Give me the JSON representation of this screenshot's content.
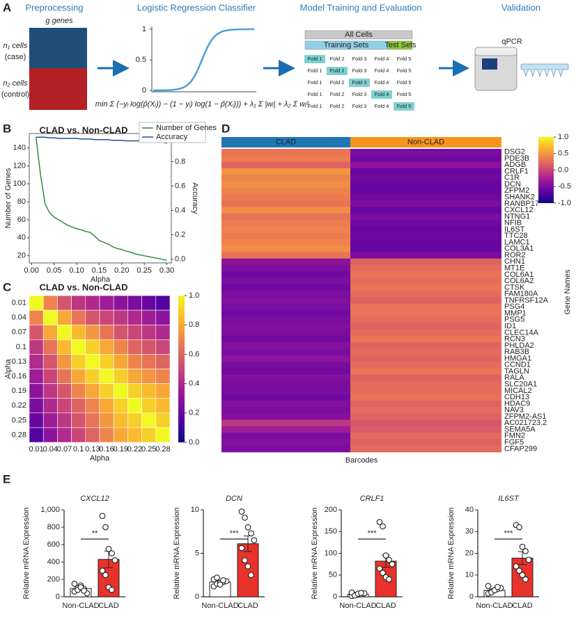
{
  "panels": [
    "A",
    "B",
    "C",
    "D",
    "E"
  ],
  "diagram": {
    "steps": [
      "Preprocessing",
      "Logistic Regression Classifier",
      "Model Training and Evaluation",
      "Validation"
    ],
    "columns": "g genes",
    "case": [
      "n₁ cells",
      "(case)"
    ],
    "control": [
      "n₂ cells",
      "(control)"
    ],
    "sigmoid_ticks": [
      1,
      0.5,
      0
    ],
    "formula": "min Σ (−yᵢ log(p̂(Xᵢ)) − (1 − yᵢ) log(1 − p̂(Xᵢ))) + λ₁ Σ |wᵢ| + λ₂ Σ wᵢ²",
    "all_cells": "All Cells",
    "training": "Training Sets",
    "test": "Test Sets",
    "folds": [
      "Fold 1",
      "Fold 2",
      "Fold 3",
      "Fold 4",
      "Fold 5"
    ],
    "device": "qPCR"
  },
  "chart_data": [
    {
      "type": "line",
      "title": "CLAD vs. Non-CLAD",
      "xlabel": "Alpha",
      "ylabel": "Number of Genes",
      "y2label": "Accuracy",
      "x": [
        0.01,
        0.02,
        0.03,
        0.04,
        0.05,
        0.06,
        0.07,
        0.08,
        0.09,
        0.1,
        0.11,
        0.12,
        0.13,
        0.14,
        0.15,
        0.16,
        0.17,
        0.18,
        0.19,
        0.2,
        0.21,
        0.22,
        0.23,
        0.24,
        0.25,
        0.26,
        0.27,
        0.28,
        0.29,
        0.3
      ],
      "series": [
        {
          "name": "Number of Genes",
          "color": "#2e8b3e",
          "values": [
            152,
            110,
            78,
            68,
            63,
            60,
            57,
            54,
            52,
            50,
            49,
            47,
            46,
            42,
            37,
            35,
            33,
            30,
            28,
            27,
            25,
            24,
            22,
            21,
            20,
            19,
            18,
            17,
            16,
            15
          ]
        },
        {
          "name": "Accuracy",
          "color": "#1f4e9c",
          "axis": "y2",
          "values": [
            1.0,
            1.0,
            1.0,
            0.995,
            0.995,
            0.99,
            0.99,
            0.99,
            0.99,
            0.99,
            0.985,
            0.985,
            0.985,
            0.98,
            0.98,
            0.98,
            0.98,
            0.975,
            0.975,
            0.975,
            0.97,
            0.97,
            0.97,
            0.97,
            0.965,
            0.965,
            0.96,
            0.96,
            0.96,
            0.95
          ]
        }
      ],
      "xlim": [
        -0.005,
        0.31
      ],
      "xticks": [
        {
          "value": 0,
          "label": "0.00"
        },
        0.05,
        {
          "value": 0.1,
          "label": "0.10"
        },
        0.15,
        {
          "value": 0.2,
          "label": "0.20"
        },
        0.25,
        {
          "value": 0.3,
          "label": "0.30"
        }
      ],
      "ylim": [
        12,
        156
      ],
      "yticks": [
        20,
        40,
        60,
        80,
        100,
        120,
        140
      ],
      "y2lim": [
        -0.03,
        1.03
      ],
      "y2ticks": [
        {
          "value": 0,
          "label": "0.0"
        },
        0.2,
        0.4,
        0.6,
        0.8,
        {
          "value": 1,
          "label": "1.0"
        }
      ],
      "legend": "upper right"
    },
    {
      "type": "heatmap",
      "title": "CLAD vs. Non-CLAD",
      "xlabel": "Alpha",
      "ylabel": "Alpha",
      "categories": [
        0.01,
        0.04,
        0.07,
        0.1,
        0.13,
        0.16,
        0.19,
        0.22,
        0.25,
        0.28
      ],
      "values": [
        [
          1,
          0.7,
          0.55,
          0.45,
          0.4,
          0.35,
          0.3,
          0.25,
          0.2,
          0.15
        ],
        [
          0.7,
          1,
          0.8,
          0.65,
          0.55,
          0.5,
          0.45,
          0.4,
          0.35,
          0.3
        ],
        [
          0.55,
          0.8,
          1,
          0.85,
          0.75,
          0.65,
          0.55,
          0.5,
          0.45,
          0.4
        ],
        [
          0.45,
          0.65,
          0.85,
          1,
          0.9,
          0.8,
          0.7,
          0.6,
          0.55,
          0.5
        ],
        [
          0.4,
          0.55,
          0.75,
          0.9,
          1,
          0.9,
          0.8,
          0.7,
          0.65,
          0.6
        ],
        [
          0.35,
          0.5,
          0.65,
          0.8,
          0.9,
          1,
          0.9,
          0.8,
          0.75,
          0.7
        ],
        [
          0.3,
          0.45,
          0.55,
          0.7,
          0.8,
          0.9,
          1,
          0.9,
          0.85,
          0.8
        ],
        [
          0.25,
          0.4,
          0.5,
          0.6,
          0.7,
          0.8,
          0.9,
          1,
          0.9,
          0.85
        ],
        [
          0.2,
          0.35,
          0.45,
          0.55,
          0.65,
          0.75,
          0.85,
          0.9,
          1,
          0.9
        ],
        [
          0.15,
          0.3,
          0.4,
          0.5,
          0.6,
          0.7,
          0.8,
          0.85,
          0.9,
          1
        ]
      ],
      "colormap": "plasma",
      "zlim": [
        0,
        1
      ],
      "zticks": [
        {
          "value": 0,
          "label": "0.0"
        },
        0.2,
        0.4,
        0.6,
        0.8,
        {
          "value": 1,
          "label": "1.0"
        }
      ]
    },
    {
      "type": "heatmap",
      "xlabel": "Barcodes",
      "ylabel": "Gene Names",
      "groups": [
        {
          "name": "CLAD",
          "color": "#1f77b4"
        },
        {
          "name": "Non-CLAD",
          "color": "#f7941d"
        }
      ],
      "genes": [
        "DSG2",
        "PDE3B",
        "ADGB",
        "CRLF1",
        "C1R",
        "DCN",
        "ZFPM2",
        "SHANK2",
        "RANBP17",
        "CXCL12",
        "NTNG1",
        "NFIB",
        "IL6ST",
        "TTC28",
        "LAMC1",
        "COL3A1",
        "ROR2",
        "CHN1",
        "MT1E",
        "COL6A1",
        "COL6A2",
        "CTSK",
        "FAM180A",
        "TNFRSF12A",
        "PSG4",
        "MMP1",
        "PSG5",
        "ID1",
        "CLEC14A",
        "RCN3",
        "PHLDA2",
        "RAB3B",
        "HMGA1",
        "CCND1",
        "TAGLN",
        "RALA",
        "SLC20A1",
        "MICAL2",
        "CDH13",
        "HDAC9",
        "NAV3",
        "ZFPM2-AS1",
        "AC021723.2",
        "SEMA5A",
        "FMN2",
        "FGF5",
        "CFAP299"
      ],
      "values": [
        [
          0.3,
          -0.5
        ],
        [
          0.35,
          -0.55
        ],
        [
          0.2,
          -0.4
        ],
        [
          0.5,
          -0.6
        ],
        [
          0.4,
          -0.55
        ],
        [
          0.45,
          -0.6
        ],
        [
          0.4,
          -0.6
        ],
        [
          0.35,
          -0.55
        ],
        [
          0.3,
          -0.5
        ],
        [
          0.45,
          -0.6
        ],
        [
          0.3,
          -0.5
        ],
        [
          0.35,
          -0.55
        ],
        [
          0.4,
          -0.6
        ],
        [
          0.35,
          -0.55
        ],
        [
          0.4,
          -0.6
        ],
        [
          0.45,
          -0.6
        ],
        [
          0.3,
          -0.5
        ],
        [
          -0.4,
          0.2
        ],
        [
          -0.5,
          0.25
        ],
        [
          -0.55,
          0.3
        ],
        [
          -0.5,
          0.25
        ],
        [
          -0.55,
          0.3
        ],
        [
          -0.5,
          0.25
        ],
        [
          -0.45,
          0.2
        ],
        [
          -0.5,
          0.3
        ],
        [
          -0.55,
          0.3
        ],
        [
          -0.5,
          0.25
        ],
        [
          -0.45,
          0.2
        ],
        [
          -0.5,
          0.25
        ],
        [
          -0.55,
          0.3
        ],
        [
          -0.45,
          0.2
        ],
        [
          -0.5,
          0.25
        ],
        [
          -0.4,
          0.2
        ],
        [
          -0.5,
          0.25
        ],
        [
          -0.55,
          0.3
        ],
        [
          -0.45,
          0.2
        ],
        [
          -0.5,
          0.25
        ],
        [
          -0.5,
          0.25
        ],
        [
          -0.55,
          0.3
        ],
        [
          -0.45,
          0.2
        ],
        [
          -0.5,
          0.25
        ],
        [
          -0.45,
          0.2
        ],
        [
          -0.1,
          0.1
        ],
        [
          -0.3,
          0.15
        ],
        [
          -0.5,
          0.25
        ],
        [
          -0.45,
          0.2
        ],
        [
          -0.5,
          0.25
        ]
      ],
      "colormap": "plasma",
      "zlim": [
        -1,
        1
      ],
      "zticks": [
        {
          "value": -1,
          "label": "-1.0"
        },
        -0.5,
        {
          "value": 0,
          "label": "0.0"
        },
        0.5,
        {
          "value": 1,
          "label": "1.0"
        }
      ]
    },
    {
      "type": "bar",
      "title": "CXCL12",
      "ylabel": "Relative mRNA Expression",
      "categories": [
        "Non-CLAD",
        "CLAD"
      ],
      "values": [
        95,
        430
      ],
      "errors": [
        20,
        95
      ],
      "points": [
        [
          60,
          100,
          130,
          90,
          40,
          150,
          80,
          110,
          70
        ],
        [
          930,
          800,
          550,
          500,
          420,
          300,
          250,
          110,
          80
        ]
      ],
      "colors": [
        "#ffffff",
        "#e8322b"
      ],
      "significance": "**",
      "ylim": [
        0,
        1000
      ],
      "yticks": [
        0,
        200,
        400,
        600,
        800,
        {
          "value": 1000,
          "label": "1,000"
        }
      ]
    },
    {
      "type": "bar",
      "title": "DCN",
      "ylabel": "Relative mRNA Expression",
      "categories": [
        "Non-CLAD",
        "CLAD"
      ],
      "values": [
        1.7,
        6.1
      ],
      "errors": [
        0.15,
        0.9
      ],
      "points": [
        [
          1.2,
          1.5,
          1.6,
          1.7,
          1.8,
          2.0,
          2.2,
          1.4,
          1.9
        ],
        [
          9.8,
          9.1,
          8.0,
          7.3,
          6.5,
          5.6,
          4.2,
          3.5,
          2.5
        ]
      ],
      "colors": [
        "#ffffff",
        "#e8322b"
      ],
      "significance": "***",
      "ylim": [
        0,
        10
      ],
      "yticks": [
        0,
        5,
        10
      ]
    },
    {
      "type": "bar",
      "title": "CRLF1",
      "ylabel": "Relative mRNA Expression",
      "categories": [
        "Non-CLAD",
        "CLAD"
      ],
      "values": [
        6,
        82
      ],
      "errors": [
        1.5,
        14
      ],
      "points": [
        [
          2,
          4,
          5,
          6,
          8,
          10,
          3,
          7,
          9
        ],
        [
          172,
          162,
          95,
          85,
          75,
          65,
          55,
          45,
          40
        ]
      ],
      "colors": [
        "#ffffff",
        "#e8322b"
      ],
      "significance": "***",
      "ylim": [
        0,
        200
      ],
      "yticks": [
        0,
        50,
        100,
        150,
        200
      ]
    },
    {
      "type": "bar",
      "title": "IL6ST",
      "ylabel": "Relative mRNA Expression",
      "categories": [
        "Non-CLAD",
        "CLAD"
      ],
      "values": [
        3,
        17.8
      ],
      "errors": [
        0.5,
        3
      ],
      "points": [
        [
          1.5,
          2.5,
          3,
          3.5,
          4,
          5,
          2,
          3,
          4.5
        ],
        [
          33,
          32,
          23,
          21,
          17,
          14,
          12,
          10,
          8
        ]
      ],
      "colors": [
        "#ffffff",
        "#e8322b"
      ],
      "significance": "***",
      "ylim": [
        0,
        40
      ],
      "yticks": [
        0,
        10,
        20,
        30,
        40
      ]
    }
  ]
}
